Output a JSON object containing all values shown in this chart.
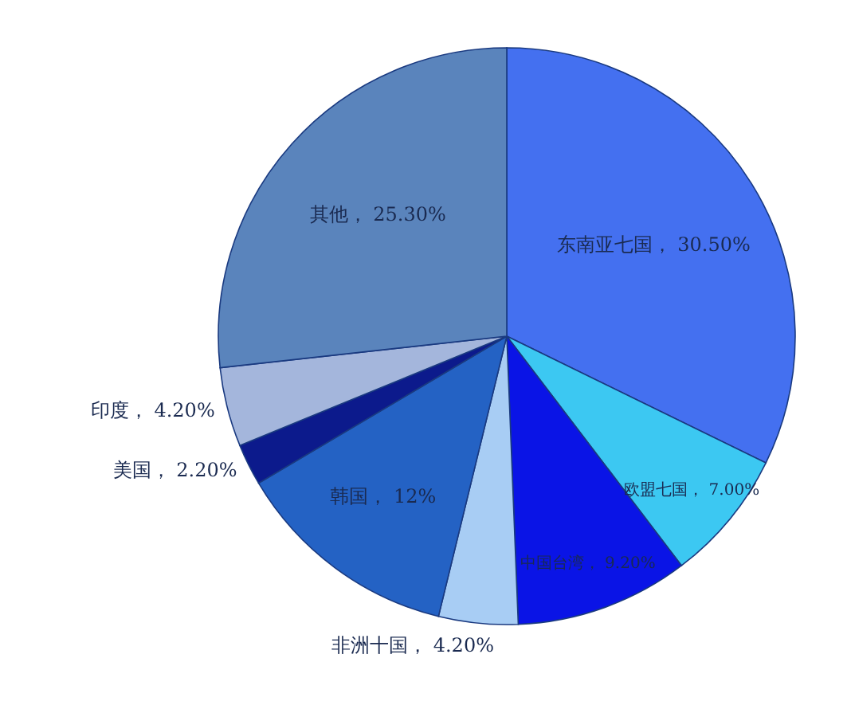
{
  "chart_data": {
    "type": "pie",
    "categories": [
      "东南亚七国",
      "欧盟七国",
      "中国台湾",
      "非洲十国",
      "韩国",
      "美国",
      "印度",
      "其他"
    ],
    "values": [
      30.5,
      7,
      9.2,
      4.2,
      12,
      2.2,
      4.2,
      25.3
    ],
    "value_labels": [
      "30.50%",
      "7.00%",
      "9.20%",
      "4.20%",
      "12%",
      "2.20%",
      "4.20%",
      "25.30%"
    ],
    "colors": [
      "#4470f0",
      "#3cc8f2",
      "#0a14e6",
      "#a8cdf4",
      "#2462c4",
      "#0c1a8c",
      "#a4b6dc",
      "#5a84bc"
    ]
  }
}
